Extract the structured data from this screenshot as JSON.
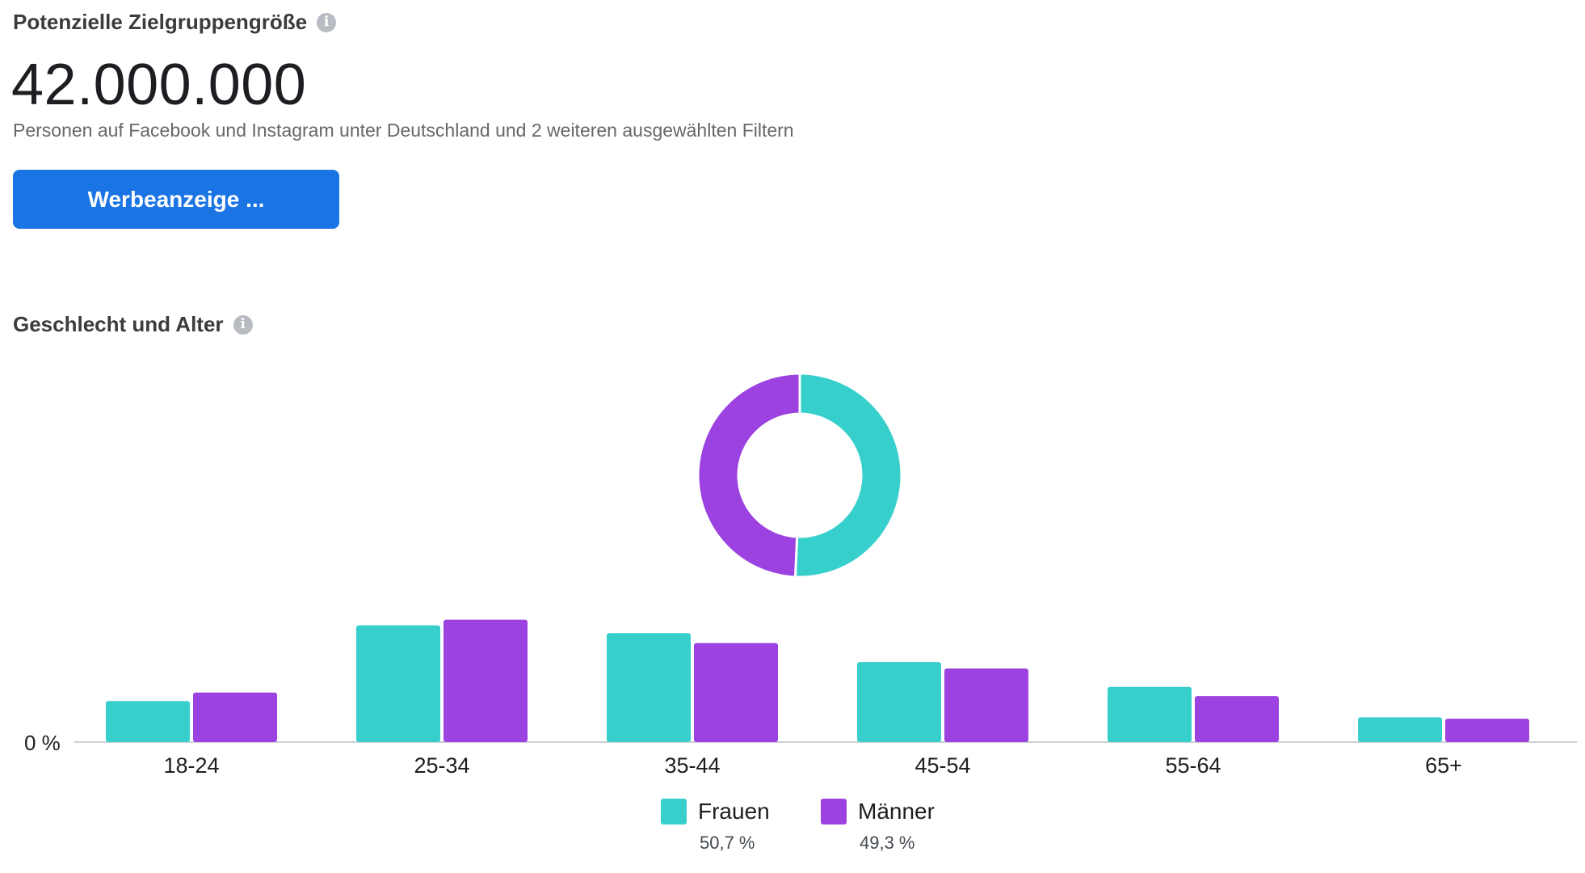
{
  "audience": {
    "title": "Potenzielle Zielgruppengröße",
    "info_icon": "info-icon",
    "size": "42.000.000",
    "description": "Personen auf Facebook und Instagram unter Deutschland und 2 weiteren ausgewählten Filtern",
    "button_label": "Werbeanzeige ..."
  },
  "demographics": {
    "title": "Geschlecht und Alter",
    "info_icon": "info-icon"
  },
  "colors": {
    "women": "#36cfcc",
    "men": "#9b42e0",
    "button": "#1b74e4"
  },
  "chart_data": [
    {
      "type": "pie",
      "variant": "donut",
      "labels": [
        "Frauen",
        "Männer"
      ],
      "values": [
        50.7,
        49.3
      ]
    },
    {
      "type": "bar",
      "categories": [
        "18-24",
        "25-34",
        "35-44",
        "45-54",
        "55-64",
        "65+"
      ],
      "series": [
        {
          "name": "Frauen",
          "values": [
            5.8,
            16.5,
            15.4,
            11.3,
            7.8,
            3.5
          ]
        },
        {
          "name": "Männer",
          "values": [
            7.0,
            17.3,
            14.0,
            10.4,
            6.5,
            3.3
          ]
        }
      ],
      "y_tick_label": "0 %",
      "ylim": [
        0,
        20
      ]
    }
  ],
  "legend": [
    {
      "label": "Frauen",
      "pct": "50,7 %"
    },
    {
      "label": "Männer",
      "pct": "49,3 %"
    }
  ]
}
